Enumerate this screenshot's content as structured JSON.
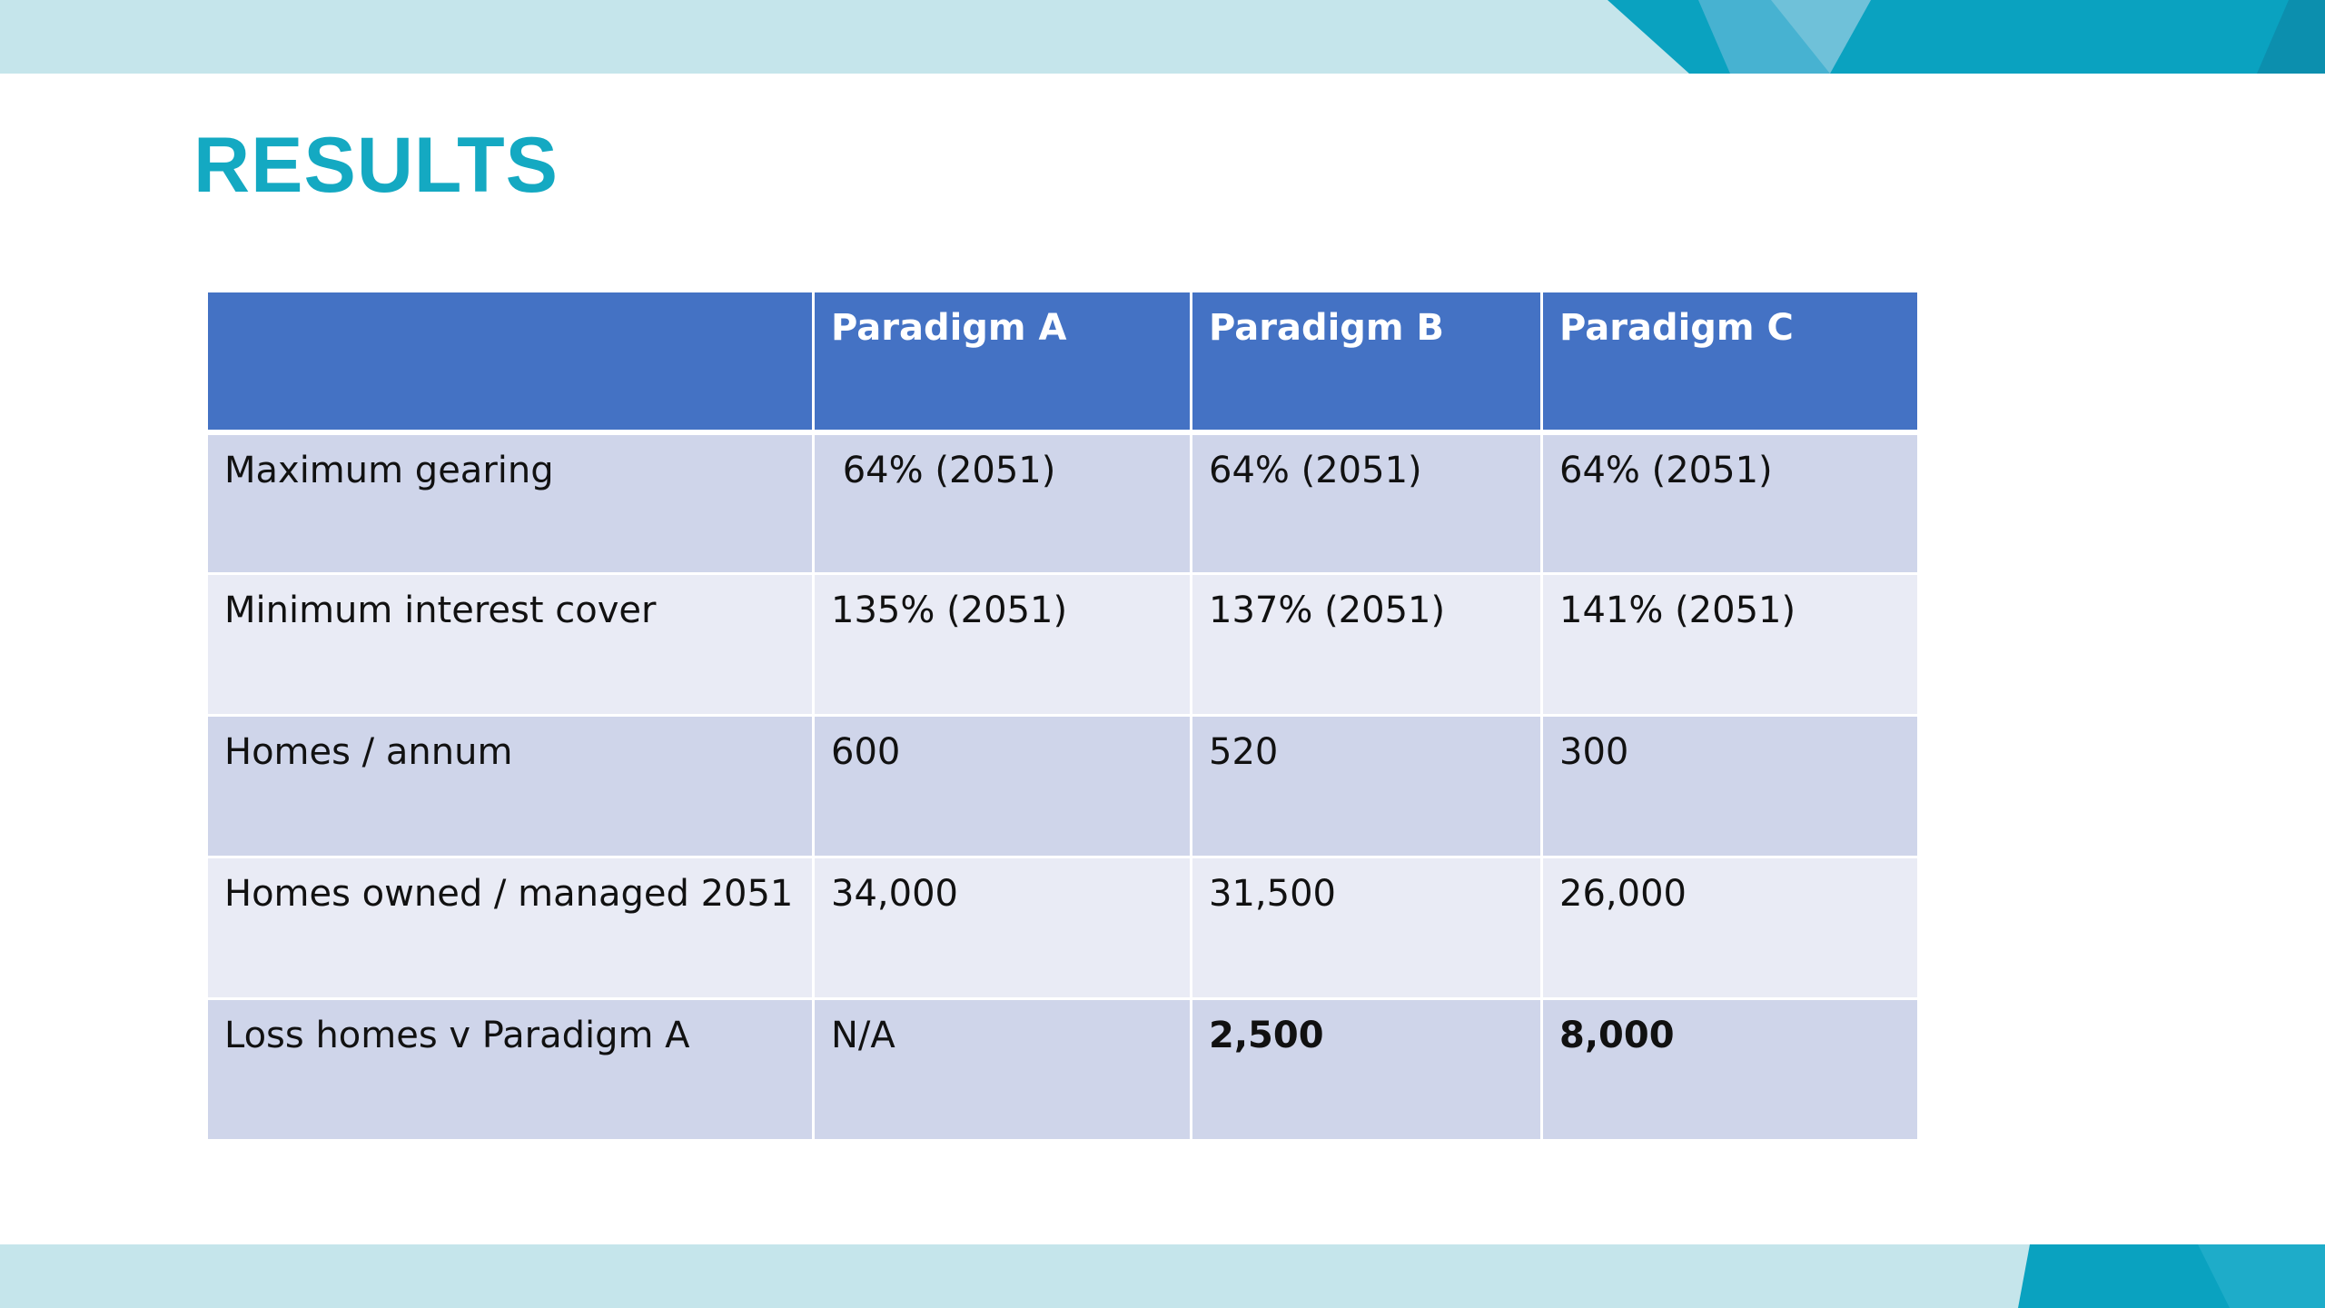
{
  "slide": {
    "title": "RESULTS",
    "colors": {
      "title": "#14a9c2",
      "header_fill": "#4472c4",
      "row_odd": "#cfd5ea",
      "row_even": "#e9ebf5",
      "band": "#c5e5eb",
      "accent_dark": "#0aa2c0",
      "accent_light": "#52b5d3"
    }
  },
  "table": {
    "columns": [
      "",
      "Paradigm A",
      "Paradigm B",
      "Paradigm C"
    ],
    "rows": [
      {
        "label": "Maximum gearing",
        "values": [
          " 64% (2051)",
          "64% (2051)",
          "64% (2051)"
        ]
      },
      {
        "label": "Minimum interest cover",
        "values": [
          "135% (2051)",
          "137% (2051)",
          "141% (2051)"
        ]
      },
      {
        "label": "Homes / annum",
        "values": [
          "600",
          "520",
          "300"
        ]
      },
      {
        "label": "Homes owned / managed 2051",
        "values": [
          "34,000",
          "31,500",
          "26,000"
        ]
      },
      {
        "label": "Loss homes v Paradigm A",
        "values": [
          "N/A",
          "2,500",
          "8,000"
        ]
      }
    ]
  }
}
